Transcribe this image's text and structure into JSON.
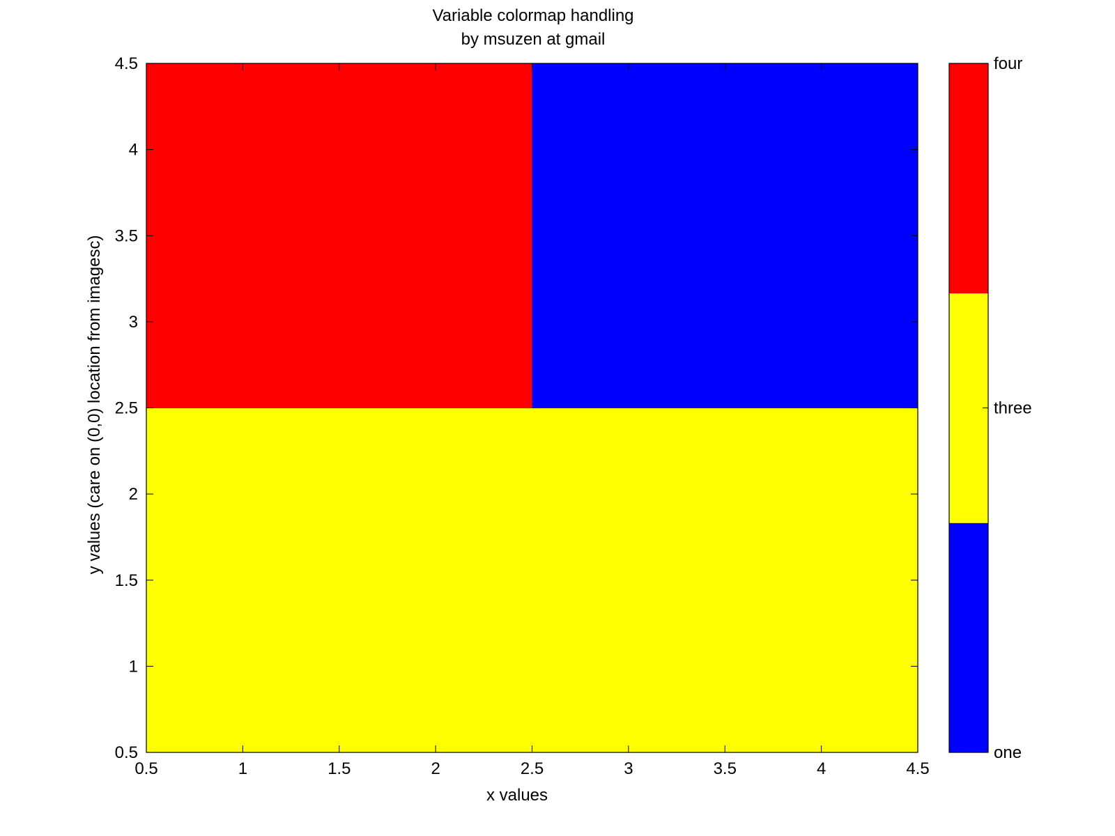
{
  "chart_data": {
    "type": "heatmap",
    "title": [
      "Variable colormap handling",
      "by msuzen at gmail"
    ],
    "xlabel": "x values",
    "ylabel": "y values (care on (0,0) location from imagesc)",
    "xlim": [
      0.5,
      4.5
    ],
    "ylim": [
      0.5,
      4.5
    ],
    "xticks": [
      0.5,
      1,
      1.5,
      2,
      2.5,
      3,
      3.5,
      4,
      4.5
    ],
    "xtick_labels": [
      "0.5",
      "1",
      "1.5",
      "2",
      "2.5",
      "3",
      "3.5",
      "4",
      "4.5"
    ],
    "yticks": [
      0.5,
      1,
      1.5,
      2,
      2.5,
      3,
      3.5,
      4,
      4.5
    ],
    "ytick_labels": [
      "0.5",
      "1",
      "1.5",
      "2",
      "2.5",
      "3",
      "3.5",
      "4",
      "4.5"
    ],
    "grid": false,
    "cells": [
      {
        "x": [
          0.5,
          2.5
        ],
        "y": [
          0.5,
          2.5
        ],
        "category": "three"
      },
      {
        "x": [
          2.5,
          4.5
        ],
        "y": [
          0.5,
          2.5
        ],
        "category": "three"
      },
      {
        "x": [
          0.5,
          2.5
        ],
        "y": [
          2.5,
          4.5
        ],
        "category": "four"
      },
      {
        "x": [
          2.5,
          4.5
        ],
        "y": [
          2.5,
          4.5
        ],
        "category": "one"
      }
    ],
    "colorbar": {
      "placement": "right",
      "segments": [
        {
          "label": "one",
          "color": "#0000ff"
        },
        {
          "label": "three",
          "color": "#ffff00"
        },
        {
          "label": "four",
          "color": "#ff0000"
        }
      ],
      "tick_labels": [
        "one",
        "three",
        "four"
      ]
    }
  }
}
